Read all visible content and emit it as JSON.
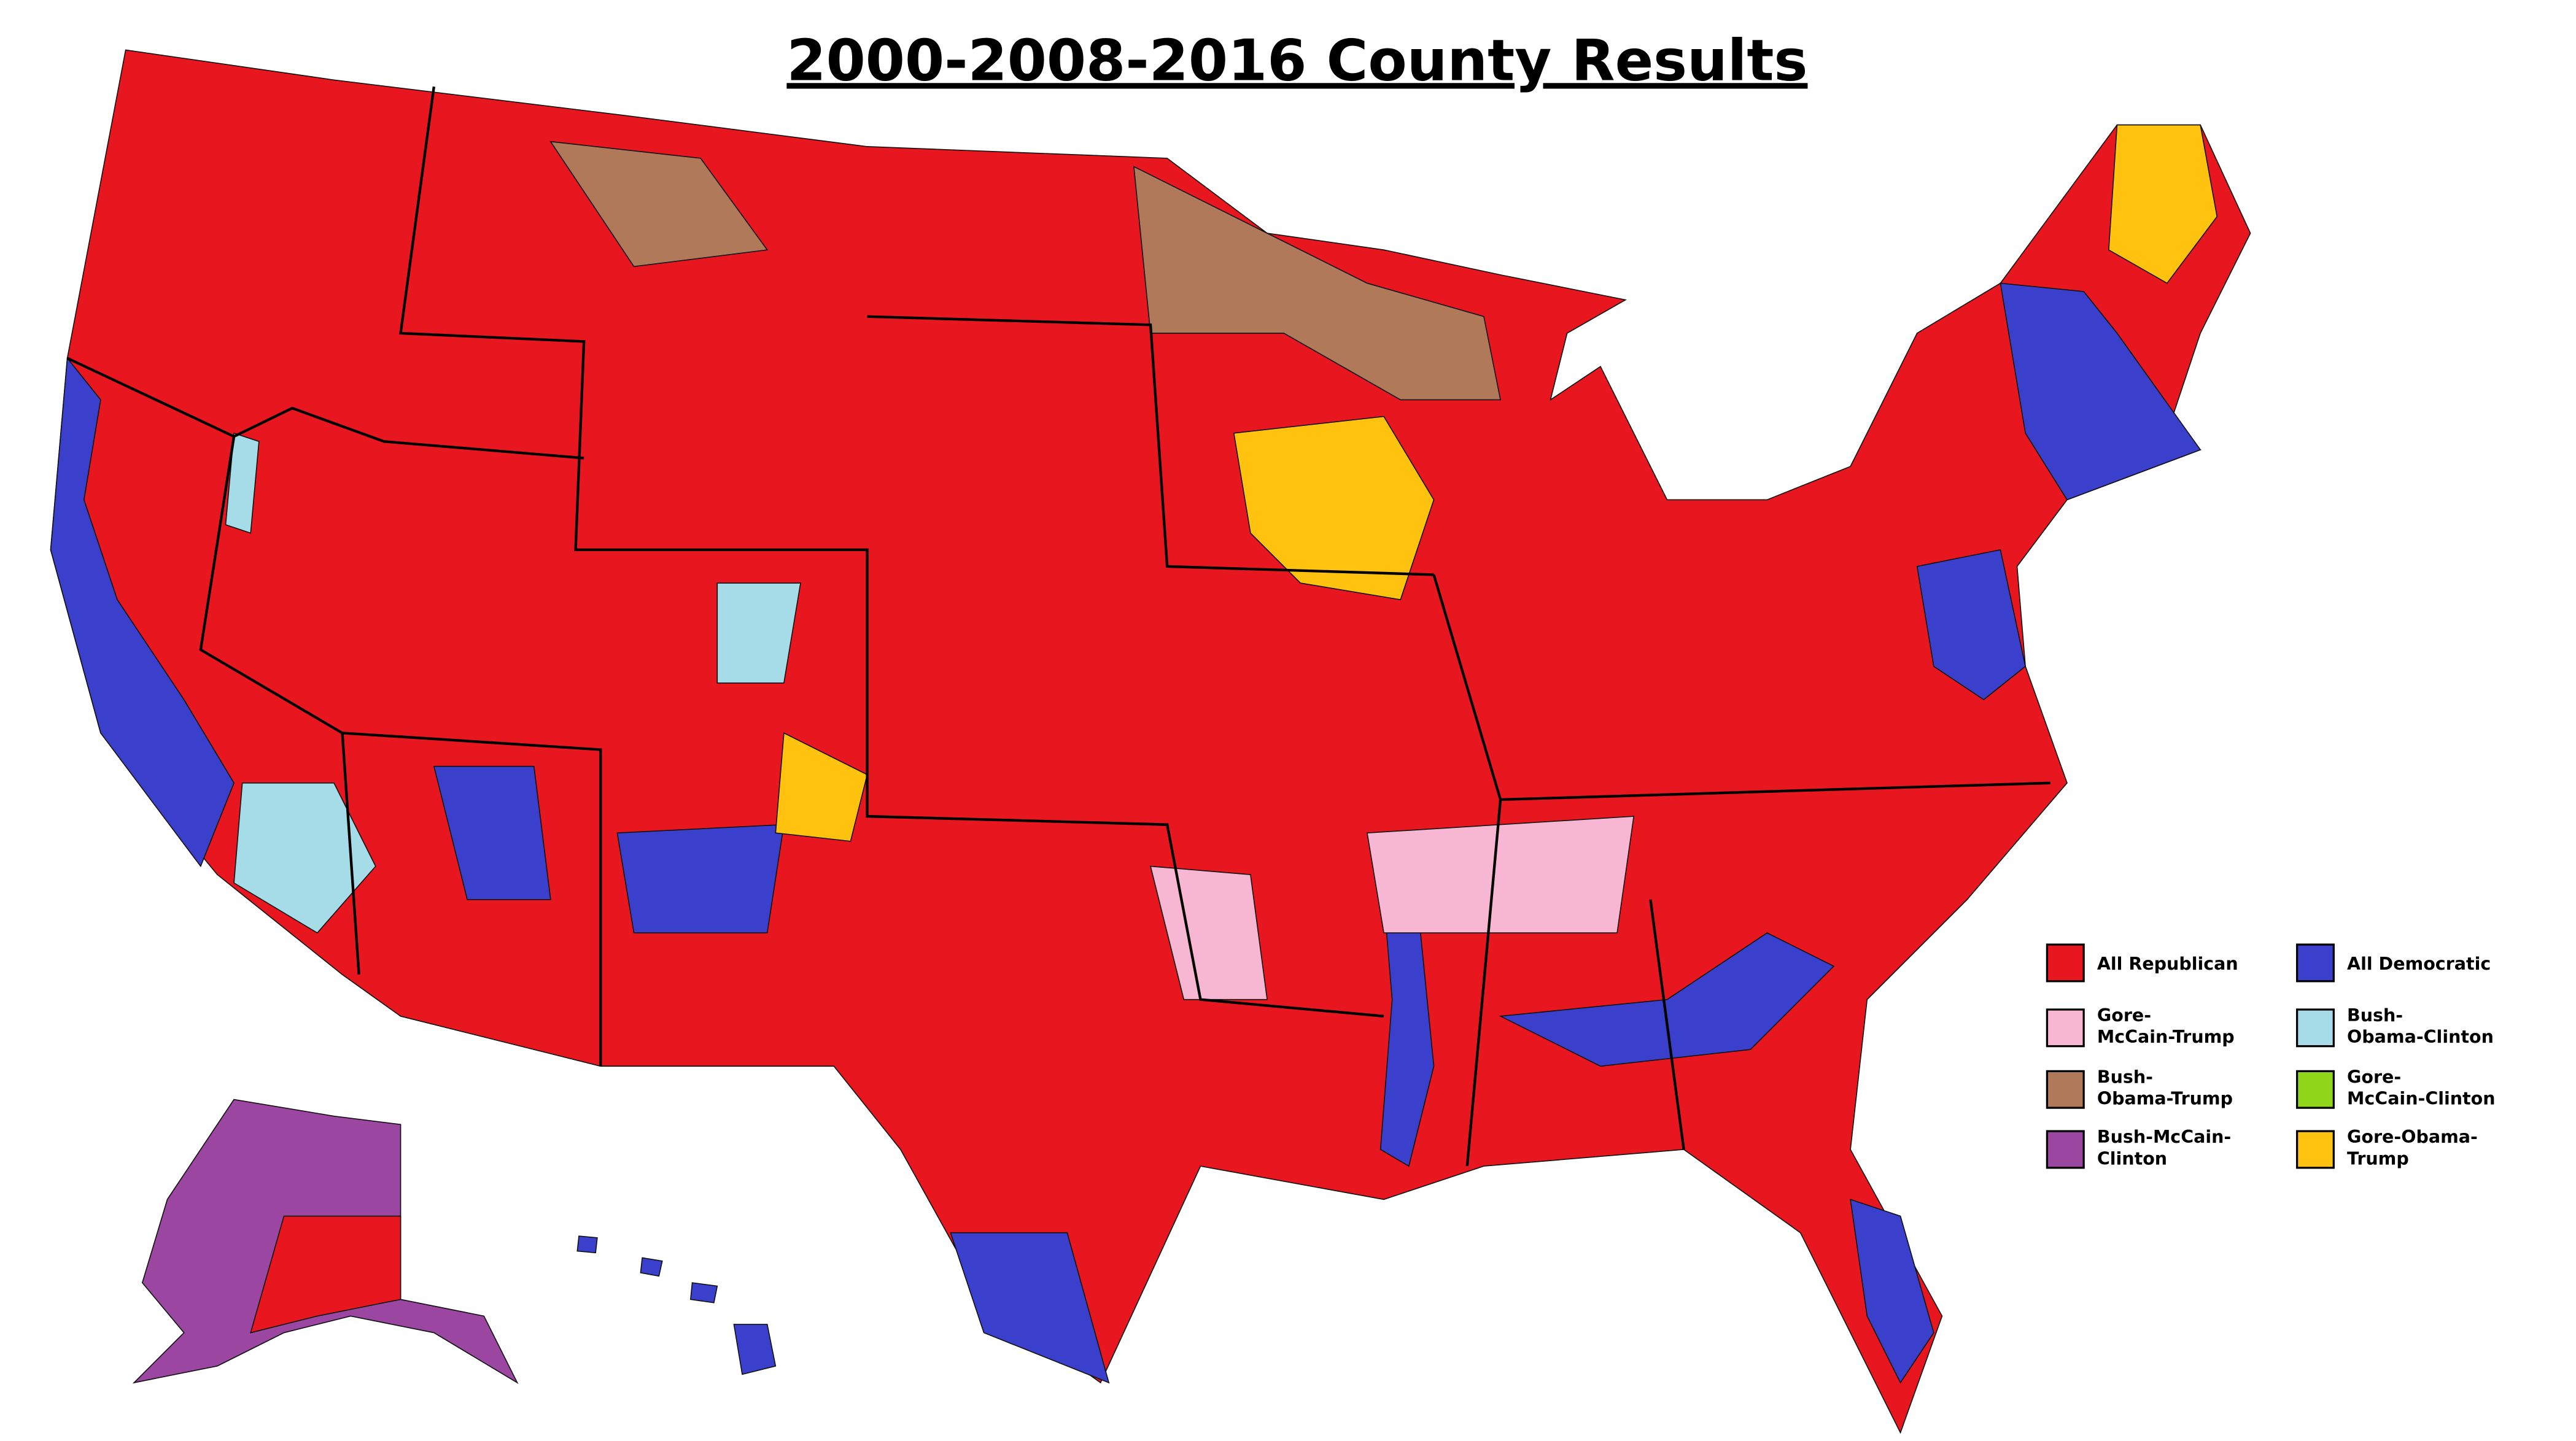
{
  "title": "2000-2008-2016 County Results",
  "legend": [
    {
      "label": [
        "All Republican"
      ],
      "color": "#e8161f"
    },
    {
      "label": [
        "Gore-",
        "McCain-Trump"
      ],
      "color": "#f7b6d2"
    },
    {
      "label": [
        "Bush-",
        "Obama-Trump"
      ],
      "color": "#b07a5a"
    },
    {
      "label": [
        "Bush-McCain-",
        "Clinton"
      ],
      "color": "#9b46a0"
    },
    {
      "label": [
        "All Democratic"
      ],
      "color": "#3a3fcc"
    },
    {
      "label": [
        "Bush-",
        "Obama-Clinton"
      ],
      "color": "#a6dce8"
    },
    {
      "label": [
        "Gore-",
        "McCain-Clinton"
      ],
      "color": "#8fd61b"
    },
    {
      "label": [
        "Gore-Obama-",
        "Trump"
      ],
      "color": "#ffc20e"
    }
  ]
}
